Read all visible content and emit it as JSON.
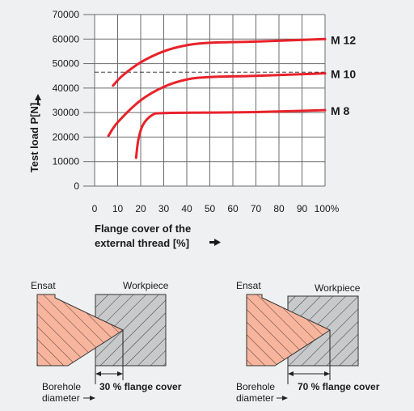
{
  "chart_data": {
    "type": "line",
    "ylabel": "Test load  P[N]",
    "xlabel_line1": "Flange cover of the",
    "xlabel_line2": "external thread  [%]",
    "xlim": [
      0,
      100
    ],
    "ylim": [
      0,
      70000
    ],
    "x_ticks": [
      "0",
      "10",
      "20",
      "30",
      "40",
      "50",
      "60",
      "70",
      "80",
      "90",
      "100%"
    ],
    "y_ticks": [
      "0",
      "10000",
      "20000",
      "30000",
      "40000",
      "50000",
      "60000",
      "70000"
    ],
    "grid": true,
    "reference_line_y": 46500,
    "curve_color": "#e8222a",
    "series": [
      {
        "name": "M 12",
        "x": [
          8,
          12,
          20,
          30,
          40,
          50,
          70,
          100
        ],
        "y": [
          41000,
          45000,
          50500,
          55000,
          57500,
          58500,
          59000,
          60000
        ]
      },
      {
        "name": "M 10",
        "x": [
          6,
          10,
          20,
          30,
          40,
          50,
          70,
          100
        ],
        "y": [
          20500,
          26000,
          35000,
          40500,
          43500,
          44500,
          45000,
          46000
        ]
      },
      {
        "name": "M 8",
        "x": [
          18,
          19,
          21,
          25,
          30,
          50,
          70,
          100
        ],
        "y": [
          11500,
          19000,
          25000,
          29000,
          29800,
          30000,
          30200,
          31000
        ]
      }
    ]
  },
  "diagrams": [
    {
      "ensat_label": "Ensat",
      "workpiece_label": "Workpiece",
      "borehole_label_1": "Borehole",
      "borehole_label_2": "diameter",
      "flange_label": "30 % flange cover"
    },
    {
      "ensat_label": "Ensat",
      "workpiece_label": "Workpiece",
      "borehole_label_1": "Borehole",
      "borehole_label_2": "diameter",
      "flange_label": "70 % flange cover"
    }
  ],
  "colors": {
    "ensat_fill": "#f7b59e",
    "workpiece_fill": "#c7c9cb",
    "grid": "#6b6b6b",
    "background": "#eef0f1",
    "plot_background": "#ffffff"
  }
}
